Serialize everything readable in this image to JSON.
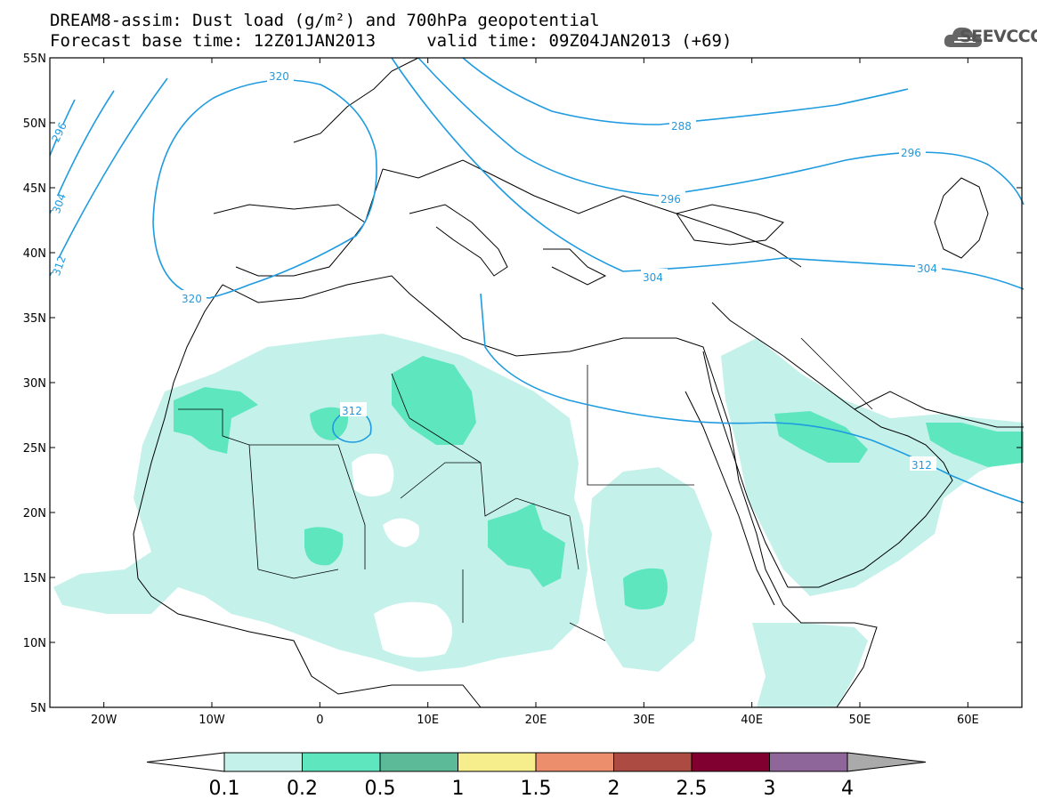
{
  "title": {
    "line1": "DREAM8-assim: Dust load (g/m²) and 700hPa geopotential",
    "line2": "Forecast base time: 12Z01JAN2013     valid time: 09Z04JAN2013 (+69)"
  },
  "logo": {
    "text": "SEEVCCC",
    "icon": "cloud-icon"
  },
  "map": {
    "lon_range": [
      -25,
      65
    ],
    "lat_range": [
      5,
      55
    ],
    "lon_ticks": [
      "20W",
      "10W",
      "0",
      "10E",
      "20E",
      "30E",
      "40E",
      "50E",
      "60E"
    ],
    "lat_ticks": [
      "55N",
      "50N",
      "45N",
      "40N",
      "35N",
      "30N",
      "25N",
      "20N",
      "15N",
      "10N",
      "5N"
    ],
    "contour_color": "#1f9be0",
    "contour_labels": [
      "320",
      "296",
      "304",
      "312",
      "320",
      "288",
      "296",
      "296",
      "304",
      "304",
      "312",
      "312"
    ]
  },
  "colorbar": {
    "labels": [
      "0.1",
      "0.2",
      "0.5",
      "1",
      "1.5",
      "2",
      "2.5",
      "3",
      "4"
    ],
    "colors": [
      "#c4f2ea",
      "#5ee6bf",
      "#5cba98",
      "#f6ed8c",
      "#ec8e6c",
      "#ab4b42",
      "#800030",
      "#8e6699"
    ],
    "under_color": "#ffffff",
    "over_color": "#aaaaaa"
  }
}
